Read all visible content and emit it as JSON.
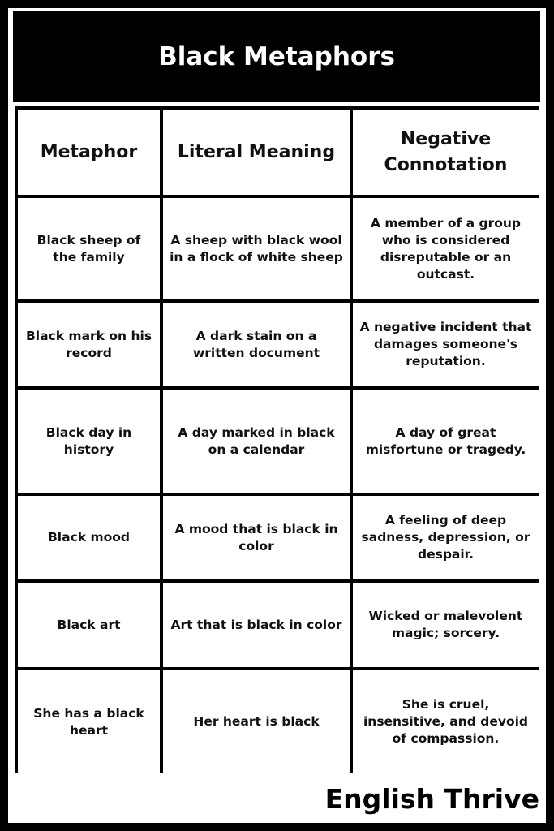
{
  "title": "Black Metaphors",
  "headers": [
    "Metaphor",
    "Literal Meaning",
    "Negative Connotation"
  ],
  "rows": [
    [
      "Black sheep of the family",
      "A sheep with black wool in a flock of white sheep",
      "A member of a group who is considered disreputable or an outcast."
    ],
    [
      "Black mark on his record",
      "A dark stain on a written document",
      "A negative incident that damages someone's reputation."
    ],
    [
      "Black day in history",
      "A day marked in black on a calendar",
      "A day of great misfortune or tragedy."
    ],
    [
      "Black mood",
      "A mood that is black in color",
      "A feeling of deep sadness, depression, or despair."
    ],
    [
      "Black art",
      "Art that is black in color",
      "Wicked or malevolent magic; sorcery."
    ],
    [
      "She has a black heart",
      "Her heart is black",
      "She is cruel, insensitive, and devoid of compassion."
    ]
  ],
  "footer": "English Thrive"
}
